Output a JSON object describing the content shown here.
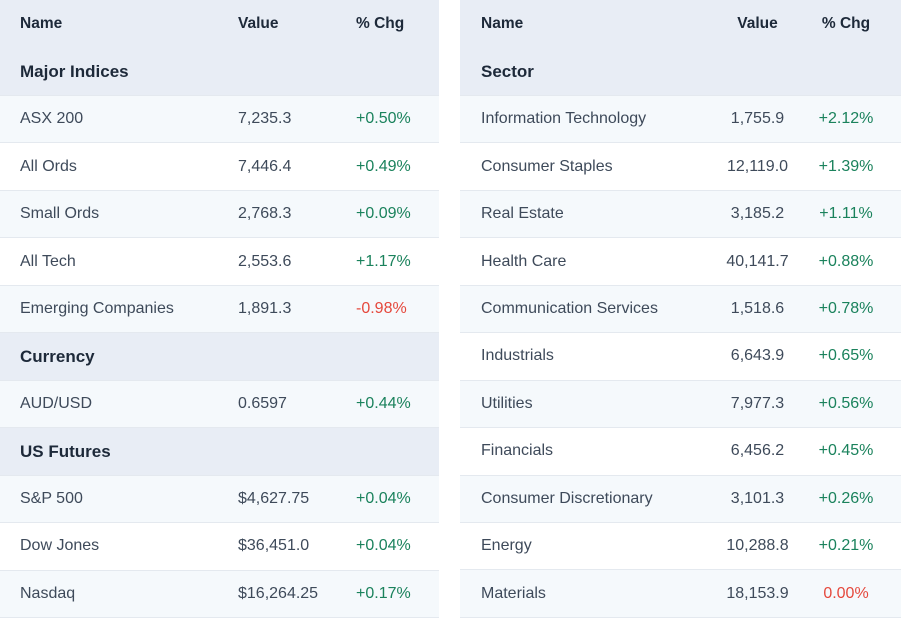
{
  "colors": {
    "positive": "#1a825c",
    "negative": "#e5483c",
    "header_bg": "#e8edf5",
    "row_alt_bg": "#f5f9fc",
    "row_border": "#e4e9ef",
    "heading_text": "#1d2939",
    "body_text": "#3e4a5a"
  },
  "tables": [
    {
      "name": "market-table-indices",
      "columns": [
        "Name",
        "Value",
        "% Chg"
      ],
      "sections": [
        {
          "title": "Major Indices",
          "rows": [
            {
              "name": "ASX 200",
              "value": "7,235.3",
              "chg": "+0.50%",
              "dir": "up"
            },
            {
              "name": "All Ords",
              "value": "7,446.4",
              "chg": "+0.49%",
              "dir": "up"
            },
            {
              "name": "Small Ords",
              "value": "2,768.3",
              "chg": "+0.09%",
              "dir": "up"
            },
            {
              "name": "All Tech",
              "value": "2,553.6",
              "chg": "+1.17%",
              "dir": "up"
            },
            {
              "name": "Emerging Companies",
              "value": "1,891.3",
              "chg": "-0.98%",
              "dir": "down"
            }
          ]
        },
        {
          "title": "Currency",
          "rows": [
            {
              "name": "AUD/USD",
              "value": "0.6597",
              "chg": "+0.44%",
              "dir": "up"
            }
          ]
        },
        {
          "title": "US Futures",
          "rows": [
            {
              "name": "S&P 500",
              "value": "$4,627.75",
              "chg": "+0.04%",
              "dir": "up"
            },
            {
              "name": "Dow Jones",
              "value": "$36,451.0",
              "chg": "+0.04%",
              "dir": "up"
            },
            {
              "name": "Nasdaq",
              "value": "$16,264.25",
              "chg": "+0.17%",
              "dir": "up"
            }
          ]
        }
      ]
    },
    {
      "name": "market-table-sectors",
      "columns": [
        "Name",
        "Value",
        "% Chg"
      ],
      "sections": [
        {
          "title": "Sector",
          "rows": [
            {
              "name": "Information Technology",
              "value": "1,755.9",
              "chg": "+2.12%",
              "dir": "up"
            },
            {
              "name": "Consumer Staples",
              "value": "12,119.0",
              "chg": "+1.39%",
              "dir": "up"
            },
            {
              "name": "Real Estate",
              "value": "3,185.2",
              "chg": "+1.11%",
              "dir": "up"
            },
            {
              "name": "Health Care",
              "value": "40,141.7",
              "chg": "+0.88%",
              "dir": "up"
            },
            {
              "name": "Communication Services",
              "value": "1,518.6",
              "chg": "+0.78%",
              "dir": "up"
            },
            {
              "name": "Industrials",
              "value": "6,643.9",
              "chg": "+0.65%",
              "dir": "up"
            },
            {
              "name": "Utilities",
              "value": "7,977.3",
              "chg": "+0.56%",
              "dir": "up"
            },
            {
              "name": "Financials",
              "value": "6,456.2",
              "chg": "+0.45%",
              "dir": "up"
            },
            {
              "name": "Consumer Discretionary",
              "value": "3,101.3",
              "chg": "+0.26%",
              "dir": "up"
            },
            {
              "name": "Energy",
              "value": "10,288.8",
              "chg": "+0.21%",
              "dir": "up"
            },
            {
              "name": "Materials",
              "value": "18,153.9",
              "chg": "0.00%",
              "dir": "down"
            }
          ]
        }
      ]
    }
  ]
}
